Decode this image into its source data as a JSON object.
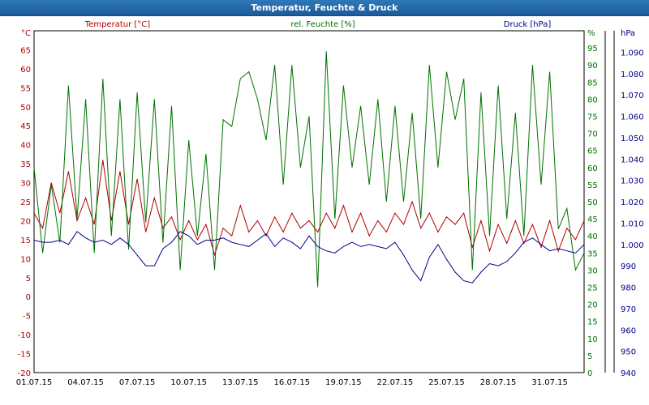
{
  "window": {
    "title": "Temperatur, Feuchte & Druck"
  },
  "chart_data": {
    "type": "line",
    "title": "Temperatur, Feuchte & Druck",
    "x_dates": [
      "01.07.15",
      "04.07.15",
      "07.07.15",
      "10.07.15",
      "13.07.15",
      "16.07.15",
      "19.07.15",
      "22.07.15",
      "25.07.15",
      "28.07.15",
      "31.07.15"
    ],
    "x_range_days": [
      0,
      32
    ],
    "grid": true,
    "axes": {
      "temperature": {
        "unit": "°C",
        "ylim": [
          -20,
          70
        ],
        "ticks": [
          -20,
          -15,
          -10,
          -5,
          0,
          5,
          10,
          15,
          20,
          25,
          30,
          35,
          40,
          45,
          50,
          55,
          60,
          65
        ],
        "color": "#b00000"
      },
      "humidity": {
        "unit": "%",
        "ylim": [
          0,
          100
        ],
        "ticks": [
          0,
          5,
          10,
          15,
          20,
          25,
          30,
          35,
          40,
          45,
          50,
          55,
          60,
          65,
          70,
          75,
          80,
          85,
          90,
          95
        ],
        "color": "#007000"
      },
      "pressure": {
        "unit": "hPa",
        "ylim": [
          940,
          1100
        ],
        "ticks": [
          "940",
          "950",
          "960",
          "970",
          "980",
          "990",
          "1.000",
          "1.010",
          "1.020",
          "1.030",
          "1.040",
          "1.050",
          "1.060",
          "1.070",
          "1.080",
          "1.090"
        ],
        "color": "#00008c"
      }
    },
    "series": [
      {
        "name": "Temperatur [°C]",
        "axis": "temperature",
        "color": "#b00000",
        "x": [
          0,
          0.5,
          1,
          1.5,
          2,
          2.5,
          3,
          3.5,
          4,
          4.5,
          5,
          5.5,
          6,
          6.5,
          7,
          7.5,
          8,
          8.5,
          9,
          9.5,
          10,
          10.5,
          11,
          11.5,
          12,
          12.5,
          13,
          13.5,
          14,
          14.5,
          15,
          15.5,
          16,
          16.5,
          17,
          17.5,
          18,
          18.5,
          19,
          19.5,
          20,
          20.5,
          21,
          21.5,
          22,
          22.5,
          23,
          23.5,
          24,
          24.5,
          25,
          25.5,
          26,
          26.5,
          27,
          27.5,
          28,
          28.5,
          29,
          29.5,
          30,
          30.5,
          31,
          31.5,
          32
        ],
        "values": [
          22,
          18,
          30,
          22,
          33,
          20,
          26,
          19,
          36,
          20,
          33,
          19,
          31,
          17,
          26,
          18,
          21,
          15,
          20,
          15,
          19,
          11,
          18,
          16,
          24,
          17,
          20,
          16,
          21,
          17,
          22,
          18,
          20,
          17,
          22,
          18,
          24,
          17,
          22,
          16,
          20,
          17,
          22,
          19,
          25,
          18,
          22,
          17,
          21,
          19,
          22,
          13,
          20,
          12,
          19,
          14,
          20,
          14,
          19,
          13,
          20,
          12,
          18,
          15,
          20
        ]
      },
      {
        "name": "rel. Feuchte [%]",
        "axis": "humidity",
        "color": "#007000",
        "x": [
          0,
          0.5,
          1,
          1.5,
          2,
          2.5,
          3,
          3.5,
          4,
          4.5,
          5,
          5.5,
          6,
          6.5,
          7,
          7.5,
          8,
          8.5,
          9,
          9.5,
          10,
          10.5,
          11,
          11.5,
          12,
          12.5,
          13,
          13.5,
          14,
          14.5,
          15,
          15.5,
          16,
          16.5,
          17,
          17.5,
          18,
          18.5,
          19,
          19.5,
          20,
          20.5,
          21,
          21.5,
          22,
          22.5,
          23,
          23.5,
          24,
          24.5,
          25,
          25.5,
          26,
          26.5,
          27,
          27.5,
          28,
          28.5,
          29,
          29.5,
          30,
          30.5,
          31,
          31.5,
          32
        ],
        "values": [
          60,
          35,
          55,
          38,
          84,
          45,
          80,
          35,
          86,
          40,
          80,
          36,
          82,
          44,
          80,
          38,
          78,
          30,
          68,
          40,
          64,
          30,
          74,
          72,
          86,
          88,
          80,
          68,
          90,
          55,
          90,
          60,
          75,
          25,
          94,
          45,
          84,
          60,
          78,
          55,
          80,
          50,
          78,
          50,
          76,
          45,
          90,
          60,
          88,
          74,
          86,
          30,
          82,
          40,
          84,
          45,
          76,
          40,
          90,
          55,
          88,
          42,
          48,
          30,
          35
        ]
      },
      {
        "name": "Druck [hPa]",
        "axis": "pressure",
        "color": "#00008c",
        "x": [
          0,
          0.5,
          1,
          1.5,
          2,
          2.5,
          3,
          3.5,
          4,
          4.5,
          5,
          5.5,
          6,
          6.5,
          7,
          7.5,
          8,
          8.5,
          9,
          9.5,
          10,
          10.5,
          11,
          11.5,
          12,
          12.5,
          13,
          13.5,
          14,
          14.5,
          15,
          15.5,
          16,
          16.5,
          17,
          17.5,
          18,
          18.5,
          19,
          19.5,
          20,
          20.5,
          21,
          21.5,
          22,
          22.5,
          23,
          23.5,
          24,
          24.5,
          25,
          25.5,
          26,
          26.5,
          27,
          27.5,
          28,
          28.5,
          29,
          29.5,
          30,
          30.5,
          31,
          31.5,
          32
        ],
        "values": [
          1002,
          1001,
          1001,
          1002,
          1000,
          1006,
          1003,
          1001,
          1002,
          1000,
          1003,
          1000,
          995,
          990,
          990,
          998,
          1001,
          1006,
          1004,
          1000,
          1002,
          1002,
          1003,
          1001,
          1000,
          999,
          1002,
          1005,
          999,
          1003,
          1001,
          998,
          1004,
          999,
          997,
          996,
          999,
          1001,
          999,
          1000,
          999,
          998,
          1001,
          995,
          988,
          983,
          994,
          1000,
          993,
          987,
          983,
          982,
          987,
          991,
          990,
          992,
          996,
          1001,
          1003,
          1000,
          997,
          998,
          997,
          996,
          1000
        ]
      }
    ]
  }
}
